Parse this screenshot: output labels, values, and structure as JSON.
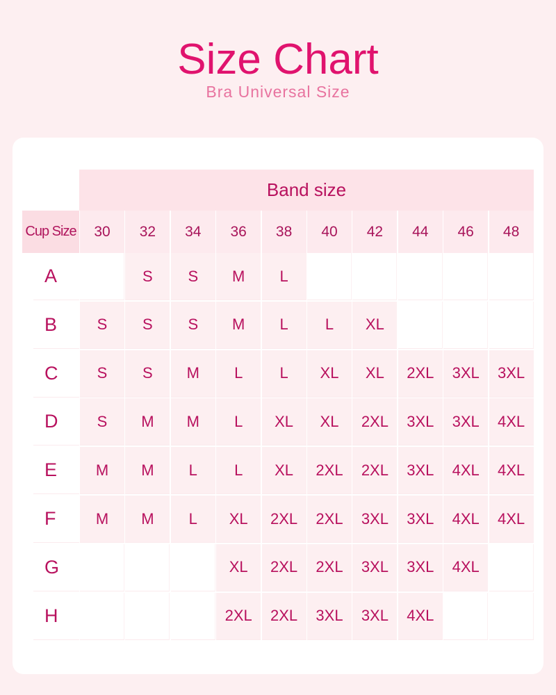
{
  "header": {
    "title": "Size Chart",
    "subtitle": "Bra Universal Size"
  },
  "table": {
    "band_header": "Band size",
    "cup_header": "Cup Size",
    "bands": [
      "30",
      "32",
      "34",
      "36",
      "38",
      "40",
      "42",
      "44",
      "46",
      "48"
    ],
    "rows": [
      {
        "cup": "A",
        "sizes": [
          "",
          "S",
          "S",
          "M",
          "L",
          "",
          "",
          "",
          "",
          ""
        ]
      },
      {
        "cup": "B",
        "sizes": [
          "S",
          "S",
          "S",
          "M",
          "L",
          "L",
          "XL",
          "",
          "",
          ""
        ]
      },
      {
        "cup": "C",
        "sizes": [
          "S",
          "S",
          "M",
          "L",
          "L",
          "XL",
          "XL",
          "2XL",
          "3XL",
          "3XL"
        ]
      },
      {
        "cup": "D",
        "sizes": [
          "S",
          "M",
          "M",
          "L",
          "XL",
          "XL",
          "2XL",
          "3XL",
          "3XL",
          "4XL"
        ]
      },
      {
        "cup": "E",
        "sizes": [
          "M",
          "M",
          "L",
          "L",
          "XL",
          "2XL",
          "2XL",
          "3XL",
          "4XL",
          "4XL"
        ]
      },
      {
        "cup": "F",
        "sizes": [
          "M",
          "M",
          "L",
          "XL",
          "2XL",
          "2XL",
          "3XL",
          "3XL",
          "4XL",
          "4XL"
        ]
      },
      {
        "cup": "G",
        "sizes": [
          "",
          "",
          "",
          "XL",
          "2XL",
          "2XL",
          "3XL",
          "3XL",
          "4XL",
          ""
        ]
      },
      {
        "cup": "H",
        "sizes": [
          "",
          "",
          "",
          "2XL",
          "2XL",
          "3XL",
          "3XL",
          "4XL",
          "",
          ""
        ]
      }
    ]
  },
  "colors": {
    "accent": "#e0136e",
    "text": "#b8115e",
    "background": "#fdeff1"
  }
}
